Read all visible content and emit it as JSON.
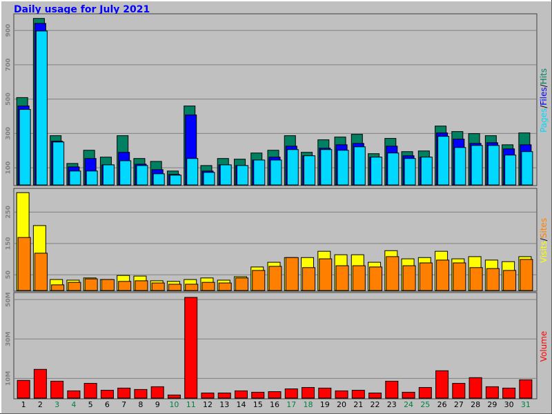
{
  "legend_separator": "/",
  "chart_data": [
    {
      "type": "bar",
      "title": "Daily usage for July 2021",
      "ylim": [
        0,
        985
      ],
      "yticks": [
        100,
        300,
        500,
        700,
        900
      ],
      "grid": true,
      "series": [
        {
          "name": "Hits",
          "color": "#008060",
          "values": [
            509,
            970,
            287,
            125,
            202,
            162,
            287,
            154,
            137,
            81,
            460,
            113,
            154,
            150,
            186,
            202,
            287,
            190,
            263,
            279,
            295,
            182,
            271,
            194,
            198,
            343,
            311,
            299,
            287,
            234,
            303
          ]
        },
        {
          "name": "Files",
          "color": "#0000ff",
          "values": [
            460,
            941,
            255,
            105,
            154,
            117,
            190,
            121,
            89,
            61,
            408,
            81,
            117,
            113,
            145,
            162,
            226,
            170,
            214,
            234,
            242,
            162,
            226,
            170,
            162,
            303,
            267,
            242,
            246,
            210,
            234
          ]
        },
        {
          "name": "Pages",
          "color": "#00d8ff",
          "values": [
            440,
            897,
            250,
            81,
            81,
            117,
            141,
            113,
            65,
            57,
            154,
            73,
            117,
            113,
            145,
            145,
            206,
            170,
            206,
            202,
            222,
            162,
            186,
            154,
            162,
            283,
            218,
            230,
            230,
            174,
            194
          ]
        }
      ]
    },
    {
      "type": "bar",
      "ylim": [
        0,
        319
      ],
      "yticks": [
        50,
        150,
        250
      ],
      "grid": true,
      "series": [
        {
          "name": "Visits",
          "color": "#ffff00",
          "values": [
            312,
            207,
            35,
            33,
            40,
            35,
            48,
            46,
            31,
            29,
            35,
            40,
            33,
            44,
            75,
            90,
            105,
            105,
            125,
            114,
            114,
            90,
            127,
            101,
            105,
            125,
            101,
            108,
            97,
            92,
            108
          ]
        },
        {
          "name": "Sites",
          "color": "#ff8000",
          "values": [
            169,
            119,
            18,
            26,
            37,
            35,
            29,
            31,
            24,
            20,
            20,
            26,
            24,
            40,
            64,
            77,
            105,
            73,
            101,
            79,
            79,
            75,
            108,
            79,
            88,
            97,
            88,
            73,
            70,
            64,
            99
          ]
        }
      ]
    },
    {
      "type": "bar",
      "ylim": [
        0,
        52.5
      ],
      "yticks": [
        {
          "value": 10,
          "label": "10M"
        },
        {
          "value": 30,
          "label": "30M"
        },
        {
          "value": 50,
          "label": "50M"
        }
      ],
      "grid": true,
      "categories": [
        "1",
        "2",
        "3",
        "4",
        "5",
        "6",
        "7",
        "8",
        "9",
        "10",
        "11",
        "12",
        "13",
        "14",
        "15",
        "16",
        "17",
        "18",
        "19",
        "20",
        "21",
        "22",
        "23",
        "24",
        "25",
        "26",
        "27",
        "28",
        "29",
        "30",
        "31"
      ],
      "category_colors": [
        "#000000",
        "#000000",
        "#008040",
        "#008040",
        "#000000",
        "#000000",
        "#000000",
        "#000000",
        "#000000",
        "#008040",
        "#008040",
        "#000000",
        "#000000",
        "#000000",
        "#000000",
        "#000000",
        "#008040",
        "#008040",
        "#000000",
        "#000000",
        "#000000",
        "#000000",
        "#000000",
        "#008040",
        "#008040",
        "#000000",
        "#000000",
        "#000000",
        "#000000",
        "#000000",
        "#008040"
      ],
      "series": [
        {
          "name": "Volume",
          "color": "#ff0000",
          "values": [
            9.0,
            14.6,
            8.6,
            3.7,
            7.5,
            4.0,
            5.1,
            4.4,
            5.8,
            1.6,
            51.1,
            2.6,
            2.6,
            3.7,
            3.0,
            3.3,
            4.7,
            5.4,
            5.1,
            3.7,
            4.0,
            2.6,
            8.6,
            3.0,
            5.4,
            13.9,
            7.5,
            10.4,
            5.8,
            5.1,
            9.3
          ]
        }
      ]
    }
  ]
}
